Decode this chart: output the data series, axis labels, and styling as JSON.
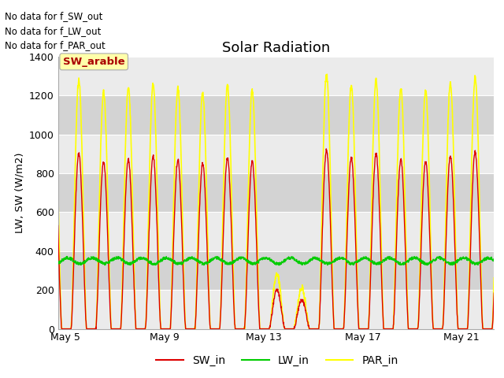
{
  "title": "Solar Radiation",
  "ylabel": "LW, SW (W/m2)",
  "ylim": [
    0,
    1400
  ],
  "yticks": [
    0,
    200,
    400,
    600,
    800,
    1000,
    1200,
    1400
  ],
  "xtick_positions": [
    5,
    9,
    13,
    17,
    21
  ],
  "xtick_labels": [
    "May 5",
    "May 9",
    "May 13",
    "May 17",
    "May 21"
  ],
  "no_data_texts": [
    "No data for f_SW_out",
    "No data for f_LW_out",
    "No data for f_PAR_out"
  ],
  "annotation_text": "SW_arable",
  "annotation_color": "#aa0000",
  "annotation_bg": "#ffffaa",
  "sw_color": "#dd0000",
  "lw_color": "#00cc00",
  "par_color": "#ffff00",
  "legend_labels": [
    "SW_in",
    "LW_in",
    "PAR_in"
  ],
  "background_color": "#ffffff",
  "plot_bg_color": "#e0e0e0",
  "band_light": "#ebebeb",
  "band_dark": "#d3d3d3",
  "grid_color": "#ffffff",
  "title_fontsize": 13,
  "no_data_fontsize": 8.5,
  "tick_fontsize": 9,
  "ylabel_fontsize": 9.5,
  "legend_fontsize": 10
}
